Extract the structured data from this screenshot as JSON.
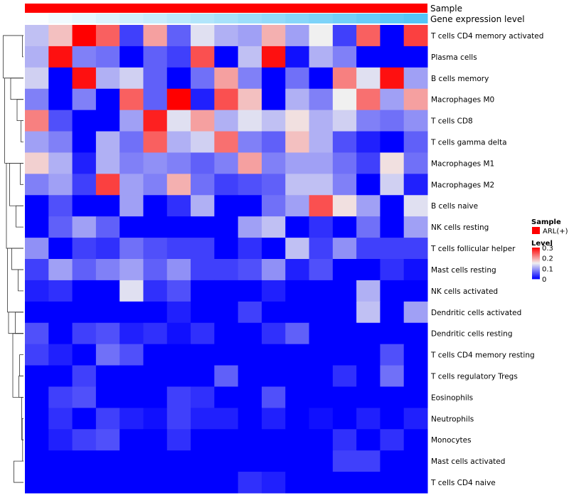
{
  "chart_data": {
    "type": "heatmap",
    "annotation_tracks": [
      {
        "label": "Sample"
      },
      {
        "label": "Gene expression level"
      }
    ],
    "gene_expression_level": [
      0.02,
      0.08,
      0.14,
      0.2,
      0.26,
      0.32,
      0.38,
      0.44,
      0.5,
      0.56,
      0.62,
      0.68,
      0.74,
      0.8,
      0.86,
      0.92,
      0.97
    ],
    "rows": [
      "T cells CD4 memory activated",
      "Plasma cells",
      "B cells memory",
      "Macrophages M0",
      "T cells CD8",
      "T cells gamma delta",
      "Macrophages M1",
      "Macrophages M2",
      "B cells naive",
      "NK cells resting",
      "T cells follicular helper",
      "Mast cells resting",
      "NK cells activated",
      "Dendritic cells activated",
      "Dendritic cells resting",
      "T cells CD4 memory resting",
      "T cells regulatory  Tregs",
      "Eosinophils",
      "Neutrophils",
      "Monocytes",
      "Mast cells activated",
      "T cells CD4 naive"
    ],
    "values": [
      [
        0.12,
        0.18,
        0.3,
        0.24,
        0.04,
        0.2,
        0.06,
        0.14,
        0.11,
        0.1,
        0.19,
        0.1,
        0.15,
        0.04,
        0.24,
        0.0,
        0.26
      ],
      [
        0.11,
        0.29,
        0.08,
        0.07,
        0.0,
        0.06,
        0.04,
        0.25,
        0.0,
        0.12,
        0.29,
        0.01,
        0.11,
        0.08,
        0.0,
        0.0,
        0.0
      ],
      [
        0.13,
        0.0,
        0.29,
        0.11,
        0.13,
        0.06,
        0.0,
        0.07,
        0.2,
        0.08,
        0.0,
        0.07,
        0.0,
        0.22,
        0.14,
        0.29,
        0.1
      ],
      [
        0.08,
        0.0,
        0.08,
        0.0,
        0.24,
        0.06,
        0.3,
        0.02,
        0.25,
        0.18,
        0.0,
        0.11,
        0.08,
        0.15,
        0.23,
        0.1,
        0.2
      ],
      [
        0.22,
        0.05,
        0.0,
        0.0,
        0.1,
        0.28,
        0.14,
        0.2,
        0.11,
        0.14,
        0.12,
        0.16,
        0.11,
        0.13,
        0.08,
        0.07,
        0.09
      ],
      [
        0.1,
        0.08,
        0.0,
        0.11,
        0.07,
        0.24,
        0.11,
        0.13,
        0.23,
        0.08,
        0.06,
        0.18,
        0.11,
        0.05,
        0.02,
        0.0,
        0.06
      ],
      [
        0.17,
        0.11,
        0.02,
        0.11,
        0.08,
        0.09,
        0.08,
        0.06,
        0.08,
        0.2,
        0.08,
        0.1,
        0.1,
        0.07,
        0.04,
        0.16,
        0.07
      ],
      [
        0.08,
        0.1,
        0.04,
        0.26,
        0.1,
        0.08,
        0.19,
        0.07,
        0.04,
        0.05,
        0.06,
        0.12,
        0.12,
        0.08,
        0.0,
        0.13,
        0.02
      ],
      [
        0.0,
        0.05,
        0.0,
        0.0,
        0.1,
        0.0,
        0.03,
        0.11,
        0.0,
        0.0,
        0.07,
        0.1,
        0.25,
        0.16,
        0.1,
        0.0,
        0.14
      ],
      [
        0.0,
        0.06,
        0.1,
        0.06,
        0.0,
        0.0,
        0.0,
        0.0,
        0.0,
        0.1,
        0.12,
        0.0,
        0.03,
        0.0,
        0.07,
        0.0,
        0.1
      ],
      [
        0.09,
        0.0,
        0.04,
        0.03,
        0.07,
        0.05,
        0.04,
        0.04,
        0.0,
        0.03,
        0.0,
        0.12,
        0.04,
        0.09,
        0.04,
        0.04,
        0.04
      ],
      [
        0.04,
        0.1,
        0.06,
        0.08,
        0.1,
        0.06,
        0.09,
        0.04,
        0.04,
        0.05,
        0.09,
        0.02,
        0.05,
        0.0,
        0.0,
        0.03,
        0.01
      ],
      [
        0.02,
        0.03,
        0.0,
        0.0,
        0.14,
        0.03,
        0.05,
        0.0,
        0.0,
        0.0,
        0.02,
        0.0,
        0.0,
        0.0,
        0.11,
        0.0,
        0.0
      ],
      [
        0.0,
        0.0,
        0.0,
        0.0,
        0.0,
        0.0,
        0.02,
        0.0,
        0.0,
        0.04,
        0.0,
        0.0,
        0.0,
        0.0,
        0.12,
        0.0,
        0.1
      ],
      [
        0.05,
        0.0,
        0.04,
        0.05,
        0.02,
        0.03,
        0.01,
        0.03,
        0.0,
        0.0,
        0.03,
        0.06,
        0.0,
        0.0,
        0.0,
        0.0,
        0.0
      ],
      [
        0.04,
        0.02,
        0.0,
        0.07,
        0.05,
        0.0,
        0.0,
        0.0,
        0.0,
        0.0,
        0.0,
        0.0,
        0.0,
        0.0,
        0.0,
        0.05,
        0.0
      ],
      [
        0.0,
        0.0,
        0.04,
        0.0,
        0.0,
        0.0,
        0.0,
        0.0,
        0.06,
        0.0,
        0.0,
        0.0,
        0.0,
        0.03,
        0.0,
        0.07,
        0.0
      ],
      [
        0.0,
        0.04,
        0.05,
        0.0,
        0.0,
        0.0,
        0.04,
        0.03,
        0.0,
        0.0,
        0.05,
        0.0,
        0.0,
        0.0,
        0.0,
        0.0,
        0.0
      ],
      [
        0.0,
        0.03,
        0.0,
        0.04,
        0.02,
        0.01,
        0.04,
        0.02,
        0.02,
        0.0,
        0.02,
        0.0,
        0.01,
        0.0,
        0.02,
        0.0,
        0.02
      ],
      [
        0.0,
        0.02,
        0.04,
        0.05,
        0.0,
        0.0,
        0.03,
        0.0,
        0.0,
        0.0,
        0.0,
        0.0,
        0.0,
        0.03,
        0.0,
        0.03,
        0.0
      ],
      [
        0.0,
        0.0,
        0.0,
        0.0,
        0.0,
        0.0,
        0.0,
        0.0,
        0.0,
        0.0,
        0.0,
        0.0,
        0.0,
        0.04,
        0.04,
        0.0,
        0.0
      ],
      [
        0.0,
        0.0,
        0.0,
        0.0,
        0.0,
        0.0,
        0.0,
        0.0,
        0.0,
        0.03,
        0.02,
        0.0,
        0.0,
        0.0,
        0.0,
        0.0,
        0.0
      ]
    ],
    "dendrogram": [
      [
        0,
        1,
        0.05
      ],
      [
        19,
        20,
        0.04
      ],
      [
        19,
        18,
        0.06
      ],
      [
        19,
        17,
        0.08
      ],
      [
        4,
        5,
        0.12
      ],
      [
        6,
        7,
        0.15
      ],
      [
        16,
        15,
        0.18
      ],
      [
        17,
        16,
        0.22
      ],
      [
        11,
        12,
        0.25
      ],
      [
        3,
        4,
        0.3
      ],
      [
        8,
        9,
        0.35
      ],
      [
        13,
        14,
        0.38
      ],
      [
        20,
        21,
        0.45
      ],
      [
        14,
        17,
        0.5
      ],
      [
        10,
        11,
        0.55
      ],
      [
        2,
        3,
        0.6
      ],
      [
        6,
        8,
        0.65
      ],
      [
        13,
        14,
        0.7
      ],
      [
        10,
        13,
        0.75
      ],
      [
        6,
        10,
        0.8
      ],
      [
        2,
        6,
        0.88
      ],
      [
        0,
        2,
        0.95
      ]
    ],
    "scale": {
      "min": 0,
      "max": 0.3,
      "low_color": "#0000ff",
      "mid_color": "#f0f0f0",
      "high_color": "#ff0000"
    },
    "legend": {
      "sample_title": "Sample",
      "sample_entry": "ARL(+)",
      "sample_color": "#ff0000",
      "level_title": "Level",
      "level_ticks": [
        "0.3",
        "0.2",
        "0.1",
        "0"
      ],
      "level_tick_values": [
        0.3,
        0.2,
        0.1,
        0
      ]
    },
    "expression_colors": {
      "low": "#ffffff",
      "high": "#4fc3f7"
    }
  }
}
